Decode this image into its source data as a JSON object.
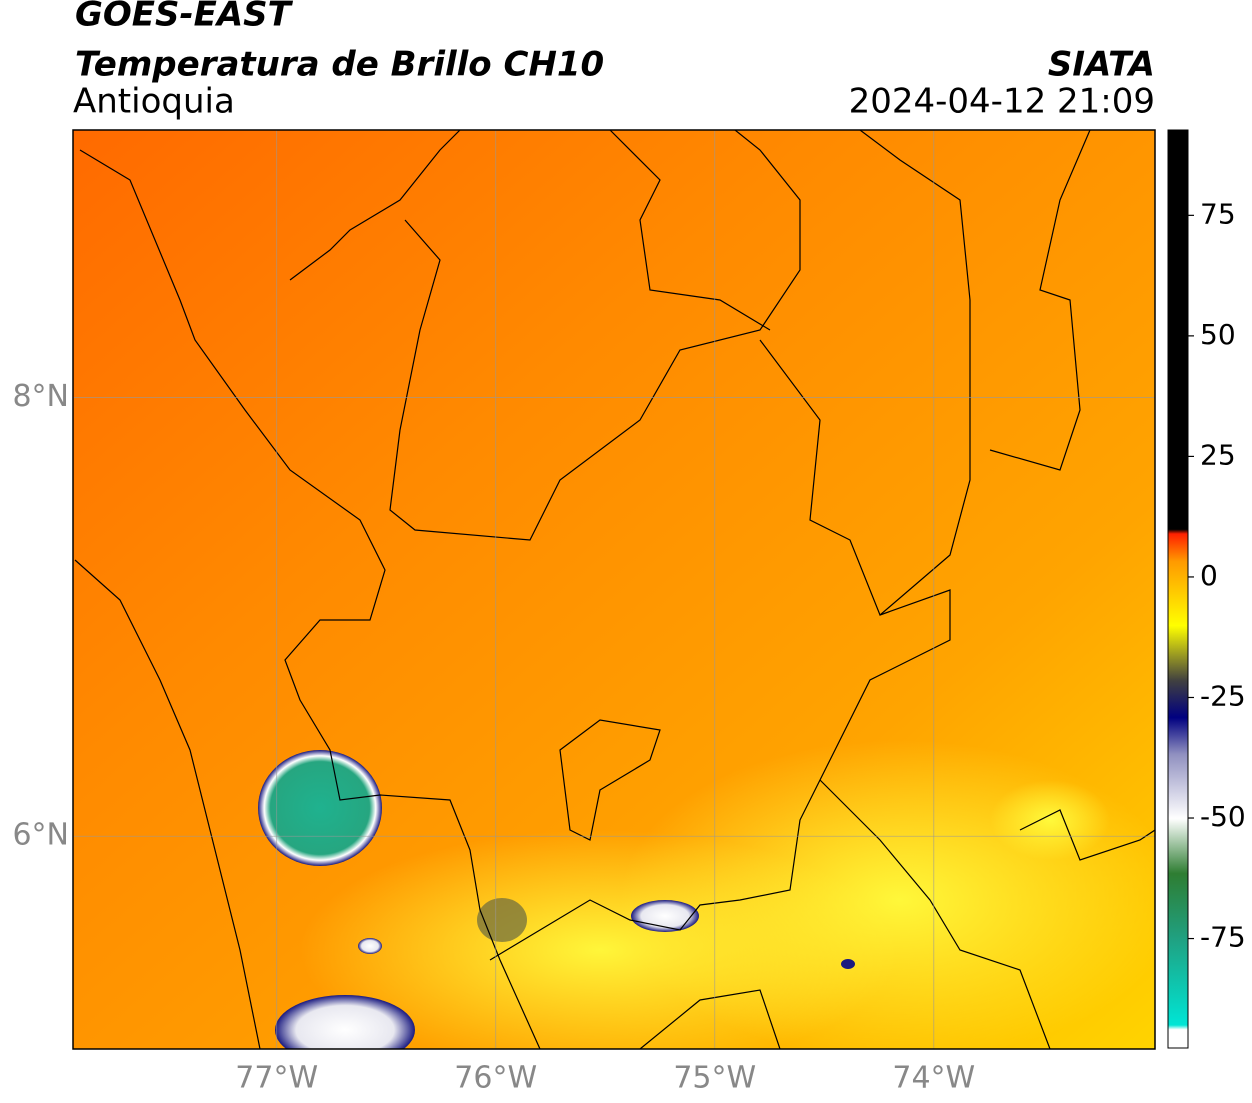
{
  "header": {
    "title": "GOES-EAST",
    "subtitle": "Temperatura de Brillo CH10",
    "region": "Antioquia",
    "source": "SIATA",
    "datetime": "2024-04-12 21:09"
  },
  "map": {
    "lon_range": [
      -77.93,
      -72.99
    ],
    "lat_range": [
      5.03,
      9.22
    ],
    "lon_ticks": [
      {
        "value": -77,
        "label": "77°W"
      },
      {
        "value": -76,
        "label": "76°W"
      },
      {
        "value": -75,
        "label": "75°W"
      },
      {
        "value": -74,
        "label": "74°W"
      }
    ],
    "lat_ticks": [
      {
        "value": 8,
        "label": "8°N"
      },
      {
        "value": 6,
        "label": "6°N"
      }
    ]
  },
  "colorbar": {
    "range": [
      -97.7,
      92.7
    ],
    "ticks": [
      75,
      50,
      25,
      0,
      -25,
      -50,
      -75
    ]
  }
}
